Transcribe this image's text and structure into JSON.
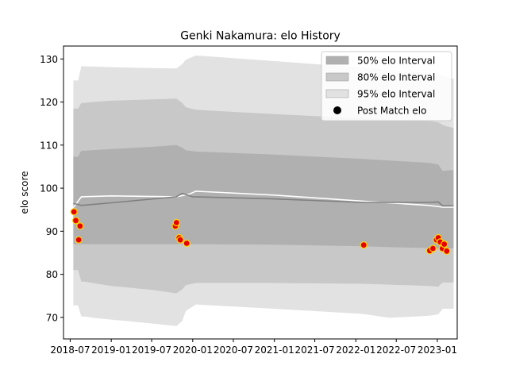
{
  "chart_data": {
    "type": "line",
    "title": "Genki Nakamura: elo History",
    "xlabel": "",
    "ylabel": "elo score",
    "xlim": [
      "2018-06-01",
      "2023-03-31"
    ],
    "ylim": [
      65,
      133
    ],
    "x_ticks": [
      "2018-07",
      "2019-01",
      "2019-07",
      "2020-01",
      "2020-07",
      "2021-01",
      "2021-07",
      "2022-01",
      "2022-07",
      "2023-01"
    ],
    "y_ticks": [
      70,
      80,
      90,
      100,
      110,
      120,
      130
    ],
    "legend_position": "top-right",
    "legend": [
      {
        "label": "50% elo Interval",
        "color": "#b0b0b0",
        "kind": "patch"
      },
      {
        "label": "80% elo Interval",
        "color": "#c8c8c8",
        "kind": "patch"
      },
      {
        "label": "95% elo Interval",
        "color": "#e2e2e2",
        "kind": "patch"
      },
      {
        "label": "Post Match elo",
        "color": "#000000",
        "kind": "marker"
      }
    ],
    "colors": {
      "band95": "#e2e2e2",
      "band80": "#c8c8c8",
      "band50": "#b0b0b0",
      "mean_line": "#808080",
      "white_line": "#ffffff",
      "marker_face": "#e60000",
      "marker_edge": "#ffd700"
    },
    "bands": {
      "x": [
        "2018-07-15",
        "2018-08-05",
        "2018-08-20",
        "2018-09-01",
        "2018-11-01",
        "2019-01-01",
        "2019-07-01",
        "2019-10-20",
        "2019-11-15",
        "2019-12-01",
        "2020-01-15",
        "2021-01-01",
        "2022-02-01",
        "2022-06-01",
        "2022-11-25",
        "2023-01-05",
        "2023-01-25",
        "2023-02-15",
        "2023-03-15"
      ],
      "p95_high": [
        125.0,
        125.0,
        128.3,
        128.3,
        128.2,
        128.1,
        127.9,
        127.8,
        128.8,
        129.8,
        130.8,
        129.5,
        128.0,
        127.4,
        126.8,
        126.6,
        126.2,
        125.8,
        125.4
      ],
      "p80_high": [
        118.5,
        118.5,
        119.8,
        119.8,
        120.1,
        120.3,
        120.6,
        120.8,
        119.8,
        118.8,
        118.2,
        117.2,
        116.2,
        115.9,
        115.6,
        115.3,
        114.7,
        114.3,
        114.0
      ],
      "p50_high": [
        107.3,
        107.3,
        108.7,
        108.7,
        108.9,
        109.1,
        109.6,
        110.0,
        109.4,
        108.8,
        108.5,
        107.8,
        106.8,
        106.4,
        105.9,
        105.5,
        104.0,
        104.1,
        104.2
      ],
      "p50_low": [
        87.0,
        87.0,
        87.0,
        87.0,
        87.0,
        87.0,
        87.0,
        87.0,
        87.0,
        87.0,
        87.0,
        86.9,
        86.5,
        86.3,
        86.1,
        86.0,
        86.0,
        86.0,
        86.0
      ],
      "p80_low": [
        81.0,
        81.0,
        78.3,
        78.3,
        77.8,
        77.3,
        76.4,
        75.6,
        76.5,
        77.5,
        78.0,
        78.0,
        77.8,
        77.6,
        77.3,
        77.1,
        78.1,
        78.1,
        78.1
      ],
      "p95_low": [
        72.8,
        72.8,
        70.2,
        70.2,
        69.8,
        69.5,
        68.6,
        68.0,
        69.2,
        71.5,
        73.0,
        72.0,
        70.8,
        69.9,
        70.4,
        70.7,
        72.0,
        72.0,
        72.0
      ]
    },
    "mean_line": {
      "x": [
        "2018-07-15",
        "2018-08-20",
        "2019-01-01",
        "2019-10-20",
        "2019-11-15",
        "2020-01-01",
        "2021-01-01",
        "2022-02-01",
        "2022-11-25",
        "2023-01-05",
        "2023-01-25",
        "2023-03-15"
      ],
      "y": [
        96.5,
        96.0,
        96.6,
        98.0,
        98.8,
        98.0,
        97.5,
        96.7,
        96.7,
        96.8,
        95.9,
        95.9
      ]
    },
    "white_line": {
      "x": [
        "2018-07-15",
        "2018-08-20",
        "2019-01-01",
        "2019-10-20",
        "2019-12-15",
        "2020-01-15",
        "2021-01-01",
        "2022-02-01",
        "2022-11-25",
        "2023-01-25",
        "2023-03-15"
      ],
      "y": [
        95.5,
        98.0,
        98.2,
        98.0,
        98.6,
        99.3,
        98.4,
        97.0,
        96.0,
        95.6,
        95.6
      ]
    },
    "points": {
      "x": [
        "2018-07-18",
        "2018-07-26",
        "2018-08-08",
        "2018-08-14",
        "2019-10-15",
        "2019-10-20",
        "2019-11-01",
        "2019-11-06",
        "2019-12-05",
        "2022-02-05",
        "2022-11-28",
        "2022-12-12",
        "2022-12-28",
        "2023-01-05",
        "2023-01-14",
        "2023-01-24",
        "2023-02-01",
        "2023-02-12"
      ],
      "y": [
        94.5,
        92.5,
        88.0,
        91.2,
        91.2,
        92.0,
        88.5,
        88.0,
        87.2,
        86.8,
        85.5,
        86.0,
        88.0,
        88.5,
        87.5,
        86.0,
        87.0,
        85.4
      ]
    }
  }
}
